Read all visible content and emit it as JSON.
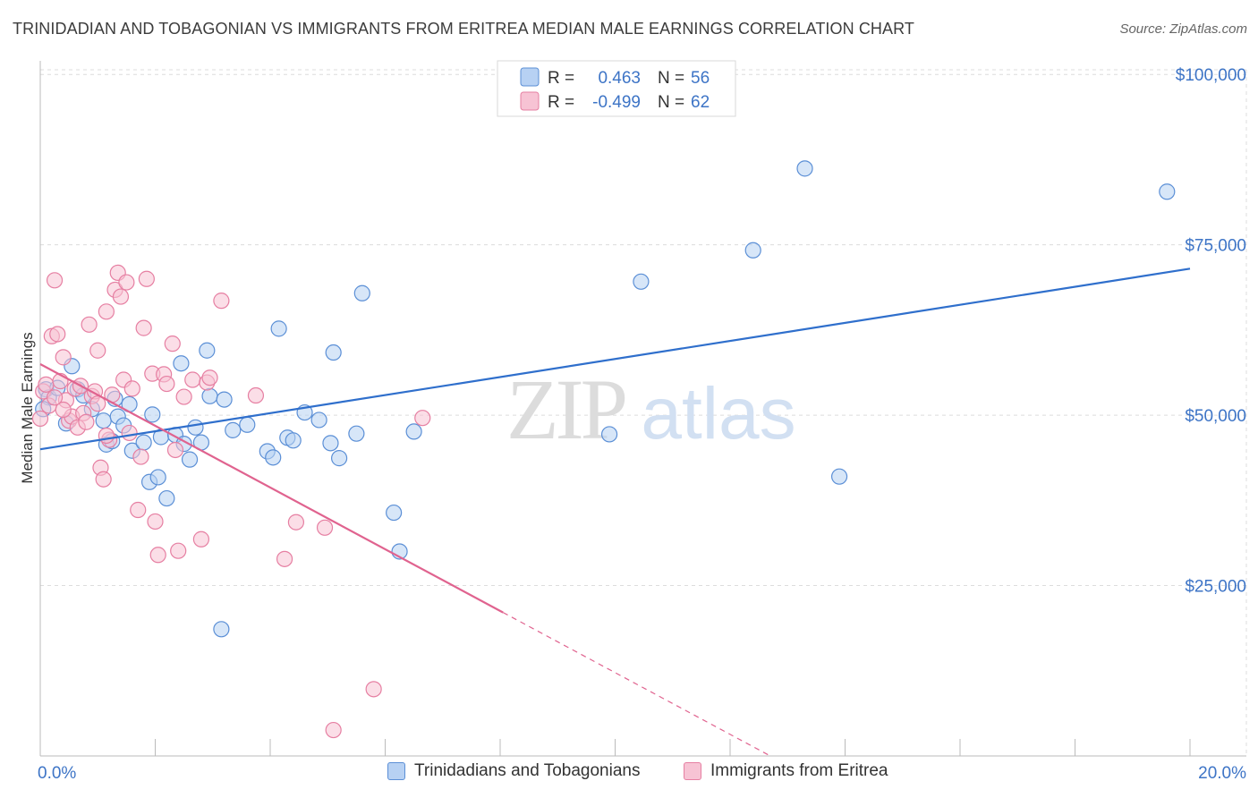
{
  "title": "TRINIDADIAN AND TOBAGONIAN VS IMMIGRANTS FROM ERITREA MEDIAN MALE EARNINGS CORRELATION CHART",
  "source": "Source: ZipAtlas.com",
  "watermark": {
    "zip": "ZIP",
    "atlas": "atlas"
  },
  "colors": {
    "blue_fill": "#b7d1f3",
    "blue_stroke": "#5b8fd6",
    "blue_line": "#2f6fcc",
    "pink_fill": "#f7c3d4",
    "pink_stroke": "#e67fa2",
    "pink_line": "#e0638f",
    "axis_text": "#3d74c6",
    "grid": "#dcdcdc"
  },
  "legend_stats": [
    {
      "r_label": "R =",
      "r_value": "0.463",
      "n_label": "N =",
      "n_value": "56"
    },
    {
      "r_label": "R =",
      "r_value": "-0.499",
      "n_label": "N =",
      "n_value": "62"
    }
  ],
  "chart_data": {
    "type": "scatter",
    "title": "TRINIDADIAN AND TOBAGONIAN VS IMMIGRANTS FROM ERITREA MEDIAN MALE EARNINGS CORRELATION CHART",
    "xlabel": "",
    "ylabel": "Median Male Earnings",
    "xlim": [
      0,
      20
    ],
    "ylim": [
      0,
      102000
    ],
    "x_tick_labels": [
      {
        "value": 0,
        "label": "0.0%"
      },
      {
        "value": 20,
        "label": "20.0%"
      }
    ],
    "y_tick_labels": [
      {
        "value": 25000,
        "label": "$25,000"
      },
      {
        "value": 50000,
        "label": "$50,000"
      },
      {
        "value": 75000,
        "label": "$75,000"
      },
      {
        "value": 100000,
        "label": "$100,000"
      }
    ],
    "grid": true,
    "legend_position": "bottom",
    "series": [
      {
        "name": "Trinidadians and Tobagonians",
        "r": 0.463,
        "n": 56,
        "trend": {
          "x": [
            0,
            20
          ],
          "y": [
            45000,
            71500
          ],
          "solid_until": 20
        },
        "points": [
          {
            "x": 0.1,
            "y": 53800
          },
          {
            "x": 0.15,
            "y": 52600
          },
          {
            "x": 0.3,
            "y": 54000
          },
          {
            "x": 0.45,
            "y": 48800
          },
          {
            "x": 0.55,
            "y": 57200
          },
          {
            "x": 0.65,
            "y": 53800
          },
          {
            "x": 0.75,
            "y": 52900
          },
          {
            "x": 0.9,
            "y": 50900
          },
          {
            "x": 1.1,
            "y": 49200
          },
          {
            "x": 1.15,
            "y": 45700
          },
          {
            "x": 1.25,
            "y": 46200
          },
          {
            "x": 1.3,
            "y": 52400
          },
          {
            "x": 1.35,
            "y": 49800
          },
          {
            "x": 1.45,
            "y": 48500
          },
          {
            "x": 1.55,
            "y": 51600
          },
          {
            "x": 1.6,
            "y": 44800
          },
          {
            "x": 1.8,
            "y": 46000
          },
          {
            "x": 1.9,
            "y": 40200
          },
          {
            "x": 1.95,
            "y": 50100
          },
          {
            "x": 2.05,
            "y": 40900
          },
          {
            "x": 2.1,
            "y": 46800
          },
          {
            "x": 2.2,
            "y": 37800
          },
          {
            "x": 2.35,
            "y": 47100
          },
          {
            "x": 2.45,
            "y": 57600
          },
          {
            "x": 2.5,
            "y": 45800
          },
          {
            "x": 2.6,
            "y": 43500
          },
          {
            "x": 2.7,
            "y": 48200
          },
          {
            "x": 2.8,
            "y": 46000
          },
          {
            "x": 2.9,
            "y": 59500
          },
          {
            "x": 2.95,
            "y": 52800
          },
          {
            "x": 3.2,
            "y": 52300
          },
          {
            "x": 3.35,
            "y": 47800
          },
          {
            "x": 3.6,
            "y": 48600
          },
          {
            "x": 3.95,
            "y": 44700
          },
          {
            "x": 4.05,
            "y": 43800
          },
          {
            "x": 4.15,
            "y": 62700
          },
          {
            "x": 4.3,
            "y": 46700
          },
          {
            "x": 4.4,
            "y": 46300
          },
          {
            "x": 4.6,
            "y": 50400
          },
          {
            "x": 4.85,
            "y": 49300
          },
          {
            "x": 5.05,
            "y": 45900
          },
          {
            "x": 5.1,
            "y": 59200
          },
          {
            "x": 5.2,
            "y": 43700
          },
          {
            "x": 5.5,
            "y": 47300
          },
          {
            "x": 5.6,
            "y": 67900
          },
          {
            "x": 6.15,
            "y": 35700
          },
          {
            "x": 6.25,
            "y": 30000
          },
          {
            "x": 6.5,
            "y": 47600
          },
          {
            "x": 3.15,
            "y": 18600
          },
          {
            "x": 9.9,
            "y": 47200
          },
          {
            "x": 10.45,
            "y": 69600
          },
          {
            "x": 12.4,
            "y": 74200
          },
          {
            "x": 13.3,
            "y": 86200
          },
          {
            "x": 13.9,
            "y": 41000
          },
          {
            "x": 19.6,
            "y": 82800
          },
          {
            "x": 0.05,
            "y": 50900
          }
        ]
      },
      {
        "name": "Immigrants from Eritrea",
        "r": -0.499,
        "n": 62,
        "trend": {
          "x": [
            0,
            12.7
          ],
          "y": [
            57500,
            0
          ],
          "solid_until": 8.05
        },
        "points": [
          {
            "x": 0.0,
            "y": 49500
          },
          {
            "x": 0.05,
            "y": 53500
          },
          {
            "x": 0.1,
            "y": 54500
          },
          {
            "x": 0.15,
            "y": 51400
          },
          {
            "x": 0.2,
            "y": 61600
          },
          {
            "x": 0.25,
            "y": 69800
          },
          {
            "x": 0.3,
            "y": 61900
          },
          {
            "x": 0.35,
            "y": 55000
          },
          {
            "x": 0.4,
            "y": 58500
          },
          {
            "x": 0.45,
            "y": 52200
          },
          {
            "x": 0.5,
            "y": 49200
          },
          {
            "x": 0.55,
            "y": 49800
          },
          {
            "x": 0.6,
            "y": 53900
          },
          {
            "x": 0.65,
            "y": 48200
          },
          {
            "x": 0.75,
            "y": 50300
          },
          {
            "x": 0.8,
            "y": 49000
          },
          {
            "x": 0.85,
            "y": 63300
          },
          {
            "x": 0.9,
            "y": 52800
          },
          {
            "x": 0.95,
            "y": 53500
          },
          {
            "x": 1.0,
            "y": 59500
          },
          {
            "x": 1.05,
            "y": 42300
          },
          {
            "x": 1.1,
            "y": 40600
          },
          {
            "x": 1.15,
            "y": 65200
          },
          {
            "x": 1.2,
            "y": 46400
          },
          {
            "x": 1.25,
            "y": 53000
          },
          {
            "x": 1.3,
            "y": 68400
          },
          {
            "x": 1.35,
            "y": 70900
          },
          {
            "x": 1.4,
            "y": 67400
          },
          {
            "x": 1.45,
            "y": 55200
          },
          {
            "x": 1.5,
            "y": 69500
          },
          {
            "x": 1.55,
            "y": 47400
          },
          {
            "x": 1.6,
            "y": 53900
          },
          {
            "x": 1.7,
            "y": 36100
          },
          {
            "x": 1.75,
            "y": 43900
          },
          {
            "x": 1.8,
            "y": 62800
          },
          {
            "x": 1.85,
            "y": 70000
          },
          {
            "x": 1.95,
            "y": 56100
          },
          {
            "x": 2.0,
            "y": 34400
          },
          {
            "x": 2.05,
            "y": 29500
          },
          {
            "x": 2.15,
            "y": 56000
          },
          {
            "x": 2.2,
            "y": 54600
          },
          {
            "x": 2.3,
            "y": 60500
          },
          {
            "x": 2.35,
            "y": 44900
          },
          {
            "x": 2.4,
            "y": 30100
          },
          {
            "x": 2.5,
            "y": 52700
          },
          {
            "x": 2.65,
            "y": 55200
          },
          {
            "x": 2.8,
            "y": 31800
          },
          {
            "x": 2.9,
            "y": 54800
          },
          {
            "x": 2.95,
            "y": 55500
          },
          {
            "x": 3.15,
            "y": 66800
          },
          {
            "x": 3.75,
            "y": 52900
          },
          {
            "x": 4.25,
            "y": 28900
          },
          {
            "x": 4.45,
            "y": 34300
          },
          {
            "x": 4.95,
            "y": 33500
          },
          {
            "x": 5.1,
            "y": 3800
          },
          {
            "x": 5.8,
            "y": 9800
          },
          {
            "x": 6.65,
            "y": 49600
          },
          {
            "x": 0.7,
            "y": 54300
          },
          {
            "x": 1.0,
            "y": 51700
          },
          {
            "x": 0.4,
            "y": 50800
          },
          {
            "x": 1.15,
            "y": 47000
          },
          {
            "x": 0.25,
            "y": 52600
          }
        ]
      }
    ]
  }
}
